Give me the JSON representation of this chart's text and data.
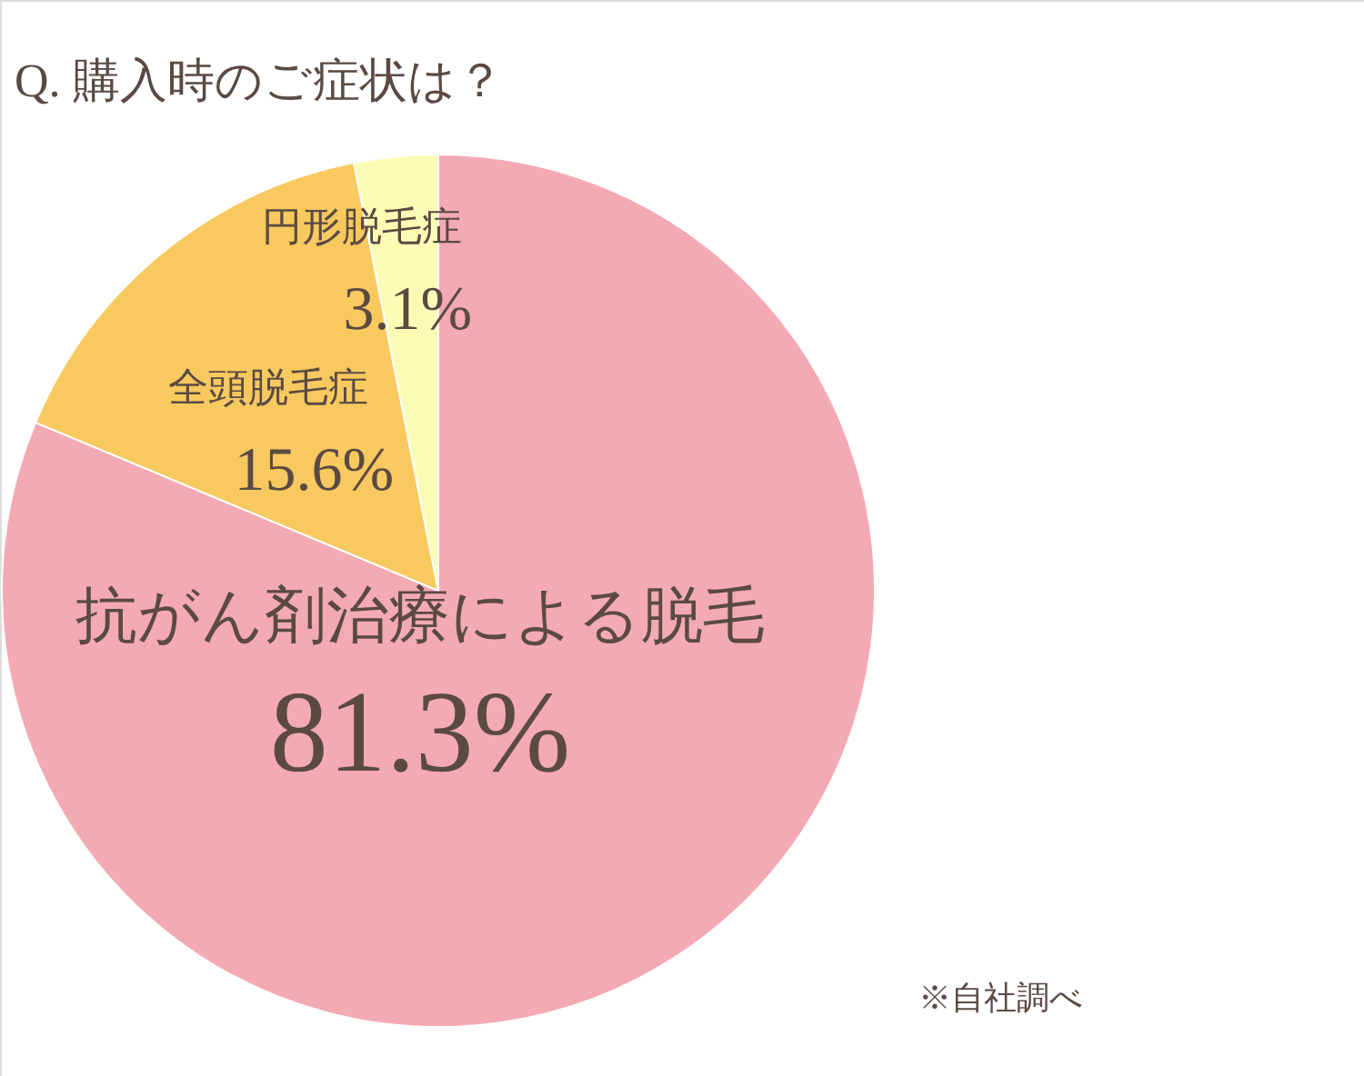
{
  "chart_data": {
    "type": "pie",
    "title": "Q. 購入時のご症状は？",
    "categories": [
      "抗がん剤治療による脱毛",
      "全頭脱毛症",
      "円形脱毛症"
    ],
    "values": [
      81.3,
      15.6,
      3.1
    ],
    "colors": [
      "#f4aab3",
      "#f8c95f",
      "#fdfcb5"
    ],
    "value_labels": [
      "81.3%",
      "15.6%",
      "3.1%"
    ],
    "annotations": [
      "※自社調べ"
    ]
  }
}
